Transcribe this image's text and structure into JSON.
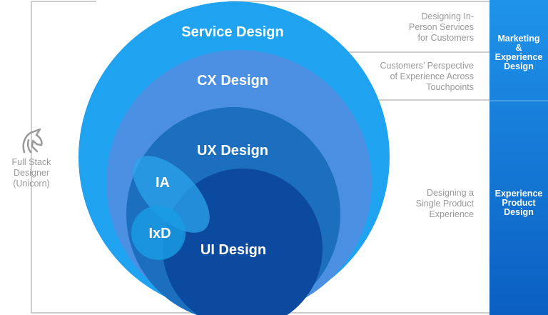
{
  "circles": {
    "service": "Service Design",
    "cx": "CX Design",
    "ux": "UX Design",
    "ia": "IA",
    "ixd": "IxD",
    "ui": "UI Design"
  },
  "descriptions": {
    "service": [
      "Designing In-",
      "Person Services",
      "for Customers"
    ],
    "cx": [
      "Customers’ Perspective",
      "of Experience Across",
      "Touchpoints"
    ],
    "product": [
      "Designing a",
      "Single Product",
      "Experience"
    ]
  },
  "bars": {
    "marketing": [
      "Marketing",
      "&",
      "Experience",
      "Design"
    ],
    "product": [
      "Experience",
      "Product",
      "Design"
    ]
  },
  "unicorn": {
    "icon": "unicorn-icon",
    "label": [
      "Full Stack",
      "Designer",
      "(Unicorn)"
    ]
  },
  "colors": {
    "service": "#1fa2f0",
    "cx": "#4b8fe2",
    "ux": "#1c6fbf",
    "ui": "#0c4a9f",
    "ia": "#2ba4ec",
    "ixd": "#1a9be2",
    "bar_top": "#1f93ea",
    "bar_bottom": "#0b5fc2"
  }
}
